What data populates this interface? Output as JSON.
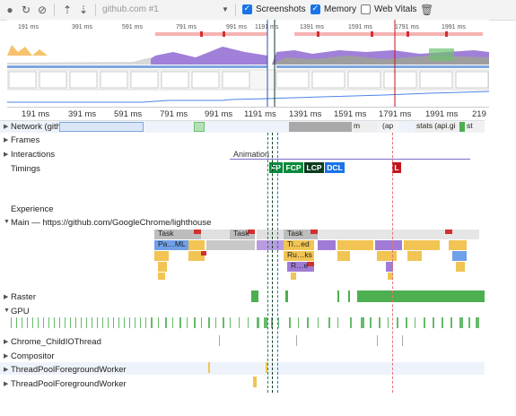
{
  "toolbar": {
    "url_label": "github.com #1",
    "screenshots_label": "Screenshots",
    "memory_label": "Memory",
    "web_vitals_label": "Web Vitals",
    "screenshots_checked": true,
    "memory_checked": true,
    "web_vitals_checked": false
  },
  "overview": {
    "ticks": [
      "191 ms",
      "391 ms",
      "591 ms",
      "791 ms",
      "991 ms",
      "1191 ms",
      "1391 ms",
      "1591 ms",
      "1791 ms",
      "1991 ms"
    ]
  },
  "ruler": {
    "ticks": [
      "191 ms",
      "391 ms",
      "591 ms",
      "791 ms",
      "991 ms",
      "1191 ms",
      "1391 ms",
      "1591 ms",
      "1791 ms",
      "1991 ms",
      "219"
    ]
  },
  "tracks": {
    "network": "Network",
    "network_host": "(github.com)",
    "frames": "Frames",
    "interactions": "Interactions",
    "timings": "Timings",
    "experience": "Experience",
    "main": "Main — https://github.com/GoogleChrome/lighthouse",
    "raster": "Raster",
    "gpu": "GPU",
    "chrome_child": "Chrome_ChildIOThread",
    "compositor": "Compositor",
    "pool1": "ThreadPoolForegroundWorker",
    "pool2": "ThreadPoolForegroundWorker"
  },
  "network_blocks": {
    "m": "m",
    "ap": "(ap",
    "stats": "stats (api.gi",
    "st": "st"
  },
  "animation_label": "Animation",
  "timings": {
    "fp": "FP",
    "fcp": "FCP",
    "lcp": "LCP",
    "dcl": "DCL",
    "l": "L"
  },
  "main_blocks": {
    "task1": "Task",
    "task2": "Task",
    "task3": "Task",
    "parse_html": "Pa…ML",
    "timer": "Ti…ed",
    "run_tasks": "Ru…ks",
    "r": "R…e"
  },
  "colors": {
    "timing_green": "#0a8a3b",
    "lcp_dark": "#0b3b1f",
    "dcl_blue": "#1a73e8",
    "load_red": "#c2161d",
    "task_gray": "#bdbdbd",
    "script_yellow": "#f1c453",
    "parse_blue": "#6fa0e8",
    "purple": "#a07cd6",
    "raster_green": "#4caf50"
  }
}
